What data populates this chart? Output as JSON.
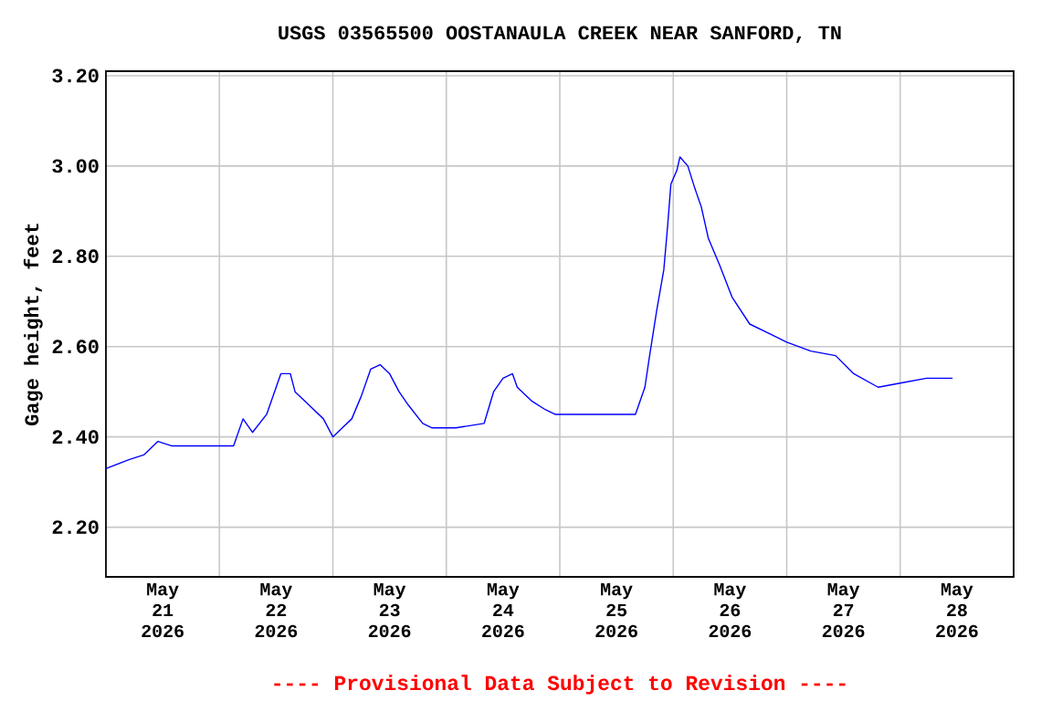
{
  "chart_data": {
    "type": "line",
    "title": "USGS 03565500 OOSTANAULA CREEK NEAR SANFORD, TN",
    "ylabel": "Gage height, feet",
    "annotations": [
      "---- Provisional Data Subject to Revision ----"
    ],
    "x": [
      "2026-05-21T00:00",
      "2026-05-21T05:00",
      "2026-05-21T08:00",
      "2026-05-21T11:00",
      "2026-05-21T14:00",
      "2026-05-21T20:00",
      "2026-05-22T03:00",
      "2026-05-22T05:00",
      "2026-05-22T07:00",
      "2026-05-22T10:00",
      "2026-05-22T12:00",
      "2026-05-22T13:00",
      "2026-05-22T15:00",
      "2026-05-22T16:00",
      "2026-05-22T19:00",
      "2026-05-22T22:00",
      "2026-05-23T00:00",
      "2026-05-23T02:00",
      "2026-05-23T04:00",
      "2026-05-23T06:00",
      "2026-05-23T08:00",
      "2026-05-23T10:00",
      "2026-05-23T12:00",
      "2026-05-23T14:00",
      "2026-05-23T16:00",
      "2026-05-23T19:00",
      "2026-05-23T21:00",
      "2026-05-24T02:00",
      "2026-05-24T08:00",
      "2026-05-24T10:00",
      "2026-05-24T12:00",
      "2026-05-24T14:00",
      "2026-05-24T15:00",
      "2026-05-24T18:00",
      "2026-05-24T21:00",
      "2026-05-24T23:00",
      "2026-05-25T05:00",
      "2026-05-25T11:00",
      "2026-05-25T16:00",
      "2026-05-25T18:00",
      "2026-05-25T19:00",
      "2026-05-25T20:30",
      "2026-05-25T22:00",
      "2026-05-25T22:50",
      "2026-05-25T23:30",
      "2026-05-26T00:45",
      "2026-05-26T01:25",
      "2026-05-26T03:05",
      "2026-05-26T04:35",
      "2026-05-26T05:55",
      "2026-05-26T07:25",
      "2026-05-26T09:50",
      "2026-05-26T12:25",
      "2026-05-26T16:10",
      "2026-05-26T20:05",
      "2026-05-27T00:00",
      "2026-05-27T05:05",
      "2026-05-27T10:20",
      "2026-05-27T14:10",
      "2026-05-27T19:20",
      "2026-05-28T00:30",
      "2026-05-28T05:35",
      "2026-05-28T11:05"
    ],
    "series": [
      {
        "color": "#0000ff",
        "values": [
          2.33,
          2.35,
          2.36,
          2.39,
          2.38,
          2.38,
          2.38,
          2.44,
          2.41,
          2.45,
          2.51,
          2.54,
          2.54,
          2.5,
          2.47,
          2.44,
          2.4,
          2.42,
          2.44,
          2.49,
          2.55,
          2.56,
          2.54,
          2.5,
          2.47,
          2.43,
          2.42,
          2.42,
          2.43,
          2.5,
          2.53,
          2.54,
          2.51,
          2.48,
          2.46,
          2.45,
          2.45,
          2.45,
          2.45,
          2.51,
          2.58,
          2.68,
          2.77,
          2.87,
          2.96,
          2.99,
          3.02,
          3.0,
          2.95,
          2.91,
          2.84,
          2.78,
          2.71,
          2.65,
          2.63,
          2.61,
          2.59,
          2.58,
          2.54,
          2.51,
          2.52,
          2.53,
          2.53
        ]
      }
    ],
    "xlim": [
      "2026-05-21",
      "2026-05-29"
    ],
    "xticks": [
      {
        "value": "2026-05-21T12:00",
        "label": "May 21 2026"
      },
      {
        "value": "2026-05-22T12:00",
        "label": "May 22 2026"
      },
      {
        "value": "2026-05-23T12:00",
        "label": "May 23 2026"
      },
      {
        "value": "2026-05-24T12:00",
        "label": "May 24 2026"
      },
      {
        "value": "2026-05-25T12:00",
        "label": "May 25 2026"
      },
      {
        "value": "2026-05-26T12:00",
        "label": "May 26 2026"
      },
      {
        "value": "2026-05-27T12:00",
        "label": "May 27 2026"
      },
      {
        "value": "2026-05-28T12:00",
        "label": "May 28 2026"
      },
      {
        "value": "2026-05-22",
        "label": null
      },
      {
        "value": "2026-05-23",
        "label": null
      },
      {
        "value": "2026-05-24",
        "label": null
      },
      {
        "value": "2026-05-25",
        "label": null
      },
      {
        "value": "2026-05-26",
        "label": null
      },
      {
        "value": "2026-05-27",
        "label": null
      },
      {
        "value": "2026-05-28",
        "label": null
      }
    ],
    "ylim": [
      2.09,
      3.21
    ],
    "yticks": [
      {
        "value": 2.2,
        "label": "2.20"
      },
      {
        "value": 2.4,
        "label": "2.40"
      },
      {
        "value": 2.6,
        "label": "2.60"
      },
      {
        "value": 2.8,
        "label": "2.80"
      },
      {
        "value": 3.0,
        "label": "3.00"
      },
      {
        "value": 3.2,
        "label": "3.20"
      }
    ],
    "grid": true
  }
}
